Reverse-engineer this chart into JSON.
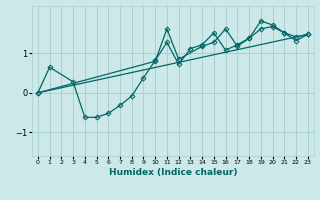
{
  "xlabel": "Humidex (Indice chaleur)",
  "ylabel": "",
  "bg_color": "#cce8e8",
  "grid_color": "#aad0d0",
  "line_color": "#006666",
  "xlim": [
    -0.5,
    23.5
  ],
  "ylim": [
    -1.6,
    2.2
  ],
  "yticks": [
    -1,
    0,
    1
  ],
  "xticks": [
    0,
    1,
    2,
    3,
    4,
    5,
    6,
    7,
    8,
    9,
    10,
    11,
    12,
    13,
    14,
    15,
    16,
    17,
    18,
    19,
    20,
    21,
    22,
    23
  ],
  "line1_x": [
    0,
    1,
    3,
    4,
    5,
    6,
    7,
    8,
    9,
    10,
    11,
    12,
    13,
    14,
    15,
    16,
    17,
    18,
    19,
    20,
    21,
    22,
    23
  ],
  "line1_y": [
    0.0,
    0.65,
    0.28,
    -0.62,
    -0.62,
    -0.52,
    -0.32,
    -0.08,
    0.38,
    0.82,
    1.28,
    0.72,
    1.12,
    1.22,
    1.52,
    1.08,
    1.22,
    1.38,
    1.62,
    1.68,
    1.52,
    1.42,
    1.48
  ],
  "line2_x": [
    0,
    10,
    11,
    12,
    14,
    15,
    16,
    17,
    18,
    19,
    20,
    21,
    22,
    23
  ],
  "line2_y": [
    0.0,
    0.8,
    1.62,
    0.85,
    1.18,
    1.28,
    1.62,
    1.18,
    1.38,
    1.82,
    1.72,
    1.52,
    1.32,
    1.48
  ],
  "line3_x": [
    0,
    23
  ],
  "line3_y": [
    0.0,
    1.48
  ]
}
